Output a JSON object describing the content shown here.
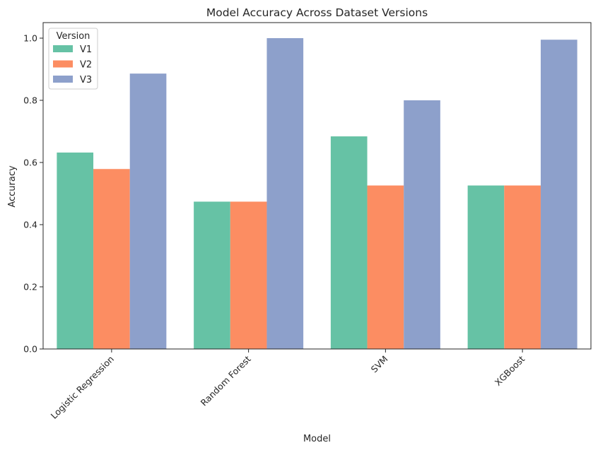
{
  "chart_data": {
    "type": "bar",
    "title": "Model Accuracy Across Dataset Versions",
    "xlabel": "Model",
    "ylabel": "Accuracy",
    "categories": [
      "Logistic Regression",
      "Random Forest",
      "SVM",
      "XGBoost"
    ],
    "series": [
      {
        "name": "V1",
        "color": "#66c2a5",
        "values": [
          0.632,
          0.474,
          0.684,
          0.526
        ]
      },
      {
        "name": "V2",
        "color": "#fc8d62",
        "values": [
          0.579,
          0.474,
          0.526,
          0.526
        ]
      },
      {
        "name": "V3",
        "color": "#8da0cb",
        "values": [
          0.886,
          1.0,
          0.8,
          0.995
        ]
      }
    ],
    "ylim": [
      0,
      1.05
    ],
    "yticks": [
      "0.0",
      "0.2",
      "0.4",
      "0.6",
      "0.8",
      "1.0"
    ],
    "ytick_values": [
      0,
      0.2,
      0.4,
      0.6,
      0.8,
      1.0
    ],
    "legend": {
      "title": "Version",
      "placement": "top-left"
    },
    "grid": false
  }
}
